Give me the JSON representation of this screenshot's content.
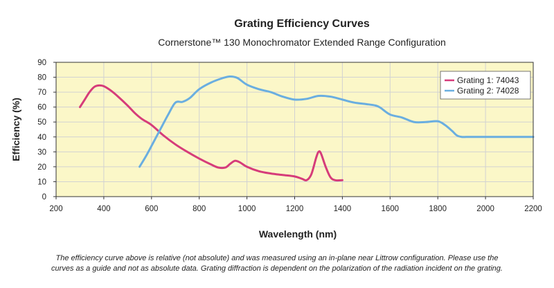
{
  "chart_data": {
    "type": "line",
    "title": "Grating Efficiency Curves",
    "subtitle": "Cornerstone™ 130 Monochromator Extended Range Configuration",
    "xlabel": "Wavelength (nm)",
    "ylabel": "Efficiency (%)",
    "xlim": [
      200,
      2200
    ],
    "ylim": [
      0,
      90
    ],
    "xticks": [
      "200",
      "400",
      "600",
      "800",
      "1000",
      "1200",
      "1400",
      "1600",
      "1800",
      "2000",
      "2200"
    ],
    "yticks": [
      "0",
      "10",
      "20",
      "30",
      "40",
      "50",
      "60",
      "70",
      "80",
      "90"
    ],
    "grid": true,
    "legend_position": "top-right",
    "series": [
      {
        "name": "Grating 1: 74043",
        "color": "#d63c7a",
        "x": [
          300,
          320,
          340,
          360,
          380,
          400,
          430,
          460,
          500,
          530,
          560,
          600,
          650,
          700,
          750,
          800,
          850,
          880,
          910,
          930,
          950,
          970,
          1000,
          1050,
          1100,
          1150,
          1200,
          1230,
          1250,
          1270,
          1290,
          1300,
          1310,
          1330,
          1350,
          1370,
          1400
        ],
        "values": [
          60,
          65,
          70,
          73.5,
          74.5,
          74,
          71,
          67,
          61,
          56,
          52,
          48,
          41,
          35,
          30,
          25.5,
          21.5,
          19.5,
          19.5,
          22,
          24,
          23,
          20,
          17,
          15.5,
          14.5,
          13.5,
          12,
          11,
          15,
          26,
          30,
          29,
          20,
          13,
          11,
          11
        ]
      },
      {
        "name": "Grating 2: 74028",
        "color": "#6aaee0",
        "x": [
          550,
          580,
          610,
          640,
          670,
          700,
          730,
          760,
          800,
          850,
          900,
          930,
          960,
          1000,
          1050,
          1100,
          1150,
          1200,
          1250,
          1300,
          1350,
          1400,
          1450,
          1500,
          1540,
          1560,
          1600,
          1650,
          1700,
          1750,
          1800,
          1830,
          1860,
          1880,
          1900,
          1920,
          1950,
          2000,
          2100,
          2200
        ],
        "values": [
          20,
          28,
          37,
          46,
          55,
          63,
          63.5,
          66,
          72,
          76.5,
          79.5,
          80.5,
          79.5,
          75,
          72,
          70,
          67,
          65,
          65.5,
          67.5,
          67,
          65,
          63,
          62,
          61,
          59.5,
          55,
          53,
          50,
          50,
          50.5,
          48,
          44,
          41,
          40,
          40,
          40,
          40,
          40,
          40
        ]
      }
    ]
  },
  "footnote": {
    "line1": "The efficiency curve above is relative (not absolute) and was measured using an in-plane near Littrow configuration.  Please use the",
    "line2": "curves as a guide and not as absolute data.  Grating diffraction is dependent on the polarization of the radiation incident on the grating."
  },
  "colors": {
    "plot_background": "#fbf7c8",
    "grid": "#d2d2d2",
    "axis": "#333333"
  }
}
